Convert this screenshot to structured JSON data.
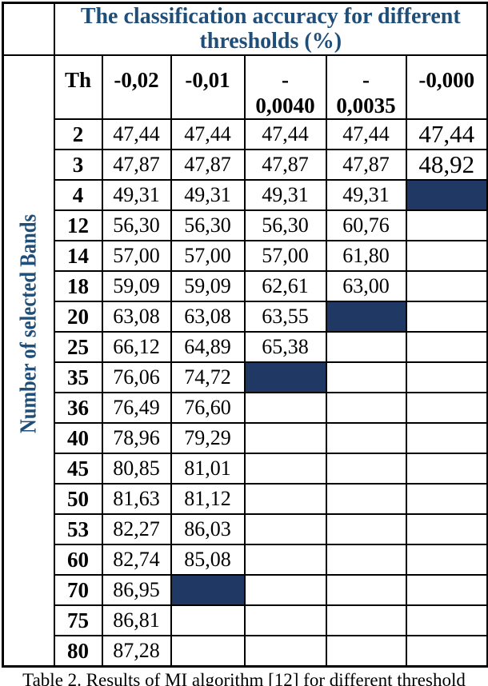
{
  "title": "The classification accuracy for different thresholds (%)",
  "side_label": "Number of selected Bands",
  "caption": "Table 2. Results of MI algorithm [12] for different threshold",
  "colors": {
    "accent_blue": "#1f4e79",
    "fill_navy": "#1f3864",
    "border": "#000000"
  },
  "table": {
    "corner_label": "",
    "columns": [
      {
        "label": "Th"
      },
      {
        "label": "-0,02"
      },
      {
        "label": "-0,01"
      },
      {
        "label": "-\n0,0040"
      },
      {
        "label": "-\n0,0035"
      },
      {
        "label": "-0,000"
      }
    ],
    "rows": [
      {
        "label": "2",
        "values": [
          "47,44",
          "47,44",
          "47,44",
          "47,44",
          "47,44"
        ],
        "filled": [],
        "large_cols": [
          4
        ]
      },
      {
        "label": "3",
        "values": [
          "47,87",
          "47,87",
          "47,87",
          "47,87",
          "48,92"
        ],
        "filled": [],
        "large_cols": [
          4
        ]
      },
      {
        "label": "4",
        "values": [
          "49,31",
          "49,31",
          "49,31",
          "49,31",
          ""
        ],
        "filled": [
          4
        ],
        "large_cols": []
      },
      {
        "label": "12",
        "values": [
          "56,30",
          "56,30",
          "56,30",
          "60,76",
          ""
        ],
        "filled": [],
        "large_cols": []
      },
      {
        "label": "14",
        "values": [
          "57,00",
          "57,00",
          "57,00",
          "61,80",
          ""
        ],
        "filled": [],
        "large_cols": []
      },
      {
        "label": "18",
        "values": [
          "59,09",
          "59,09",
          "62,61",
          "63,00",
          ""
        ],
        "filled": [],
        "large_cols": []
      },
      {
        "label": "20",
        "values": [
          "63,08",
          "63,08",
          "63,55",
          "",
          ""
        ],
        "filled": [
          3
        ],
        "large_cols": []
      },
      {
        "label": "25",
        "values": [
          "66,12",
          "64,89",
          "65,38",
          "",
          ""
        ],
        "filled": [],
        "large_cols": []
      },
      {
        "label": "35",
        "values": [
          "76,06",
          "74,72",
          "",
          "",
          ""
        ],
        "filled": [
          2
        ],
        "large_cols": []
      },
      {
        "label": "36",
        "values": [
          "76,49",
          "76,60",
          "",
          "",
          ""
        ],
        "filled": [],
        "large_cols": []
      },
      {
        "label": "40",
        "values": [
          "78,96",
          "79,29",
          "",
          "",
          ""
        ],
        "filled": [],
        "large_cols": []
      },
      {
        "label": "45",
        "values": [
          "80,85",
          "81,01",
          "",
          "",
          ""
        ],
        "filled": [],
        "large_cols": []
      },
      {
        "label": "50",
        "values": [
          "81,63",
          "81,12",
          "",
          "",
          ""
        ],
        "filled": [],
        "large_cols": []
      },
      {
        "label": "53",
        "values": [
          "82,27",
          "86,03",
          "",
          "",
          ""
        ],
        "filled": [],
        "large_cols": []
      },
      {
        "label": "60",
        "values": [
          "82,74",
          "85,08",
          "",
          "",
          ""
        ],
        "filled": [],
        "large_cols": []
      },
      {
        "label": "70",
        "values": [
          "86,95",
          "",
          "",
          "",
          ""
        ],
        "filled": [
          1
        ],
        "large_cols": []
      },
      {
        "label": "75",
        "values": [
          "86,81",
          "",
          "",
          "",
          ""
        ],
        "filled": [],
        "large_cols": []
      },
      {
        "label": "80",
        "values": [
          "87,28",
          "",
          "",
          "",
          ""
        ],
        "filled": [],
        "large_cols": []
      }
    ]
  }
}
